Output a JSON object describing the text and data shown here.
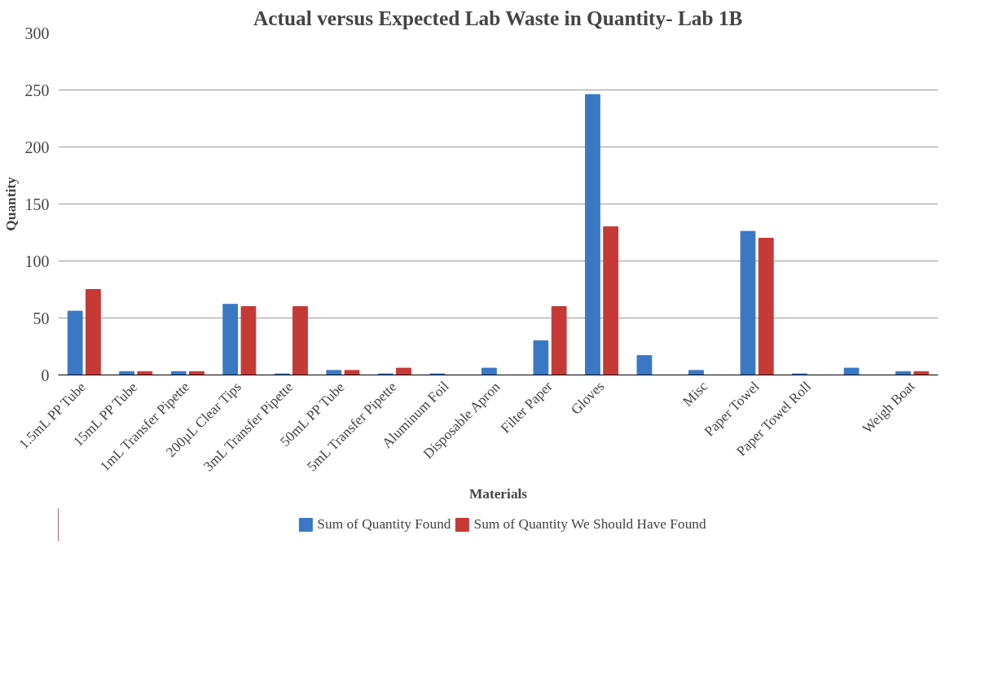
{
  "chart_data": {
    "type": "bar",
    "title": "Actual versus Expected Lab Waste in Quantity- Lab 1B",
    "xlabel": "Materials",
    "ylabel": "Quantity",
    "categories": [
      "1.5mL PP Tube",
      "15mL PP Tube",
      "1mL Transfer Pipette",
      "200µL Clear Tips",
      "3mL Transfer Pipette",
      "50mL PP Tube",
      "5mL Transfer Pipette",
      "Aluminum Foil",
      "Disposable Apron",
      "Filter Paper",
      "Gloves",
      null,
      "Misc",
      "Paper Towel",
      "Paper Towel Roll",
      null,
      "Weigh Boat"
    ],
    "series": [
      {
        "name": "Sum of Quantity Found",
        "color": "#3a78c4",
        "values": [
          56,
          3,
          3,
          62,
          1,
          4,
          1,
          1,
          6,
          30,
          246,
          17,
          4,
          126,
          1,
          6,
          3
        ]
      },
      {
        "name": "Sum of Quantity We Should Have Found",
        "color": "#c63a36",
        "values": [
          75,
          3,
          3,
          60,
          60,
          4,
          6,
          null,
          null,
          60,
          130,
          null,
          null,
          120,
          null,
          null,
          3
        ]
      }
    ],
    "ylim": [
      0,
      300
    ],
    "yticks": [
      0,
      50,
      100,
      150,
      200,
      250,
      300
    ],
    "grid": "y",
    "legend": "bottom"
  }
}
